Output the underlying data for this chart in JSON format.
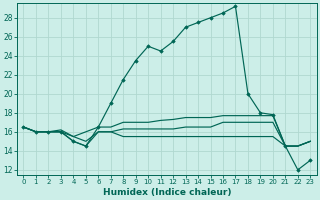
{
  "title": "",
  "xlabel": "Humidex (Indice chaleur)",
  "ylabel": "",
  "bg_color": "#cceee8",
  "grid_color": "#b0d8d0",
  "line_color": "#006655",
  "xlim": [
    -0.5,
    23.5
  ],
  "ylim": [
    11.5,
    29.5
  ],
  "yticks": [
    12,
    14,
    16,
    18,
    20,
    22,
    24,
    26,
    28
  ],
  "xticks": [
    0,
    1,
    2,
    3,
    4,
    5,
    6,
    7,
    8,
    9,
    10,
    11,
    12,
    13,
    14,
    15,
    16,
    17,
    18,
    19,
    20,
    21,
    22,
    23
  ],
  "series1": [
    16.5,
    16.0,
    16.0,
    16.0,
    15.0,
    14.5,
    16.5,
    19.0,
    21.5,
    23.5,
    25.0,
    24.5,
    25.5,
    27.0,
    27.5,
    28.0,
    28.5,
    29.2,
    20.0,
    18.0,
    17.8,
    14.5,
    12.0,
    13.0
  ],
  "series2": [
    16.5,
    16.0,
    16.0,
    16.2,
    15.5,
    16.0,
    16.5,
    16.5,
    17.0,
    17.0,
    17.0,
    17.2,
    17.3,
    17.5,
    17.5,
    17.5,
    17.7,
    17.7,
    17.7,
    17.7,
    17.7,
    14.5,
    14.5,
    15.0
  ],
  "series3": [
    16.5,
    16.0,
    16.0,
    16.0,
    15.5,
    15.0,
    16.0,
    16.0,
    16.3,
    16.3,
    16.3,
    16.3,
    16.3,
    16.5,
    16.5,
    16.5,
    17.0,
    17.0,
    17.0,
    17.0,
    17.0,
    14.5,
    14.5,
    15.0
  ],
  "series4": [
    16.5,
    16.0,
    16.0,
    16.0,
    15.0,
    14.5,
    16.0,
    16.0,
    15.5,
    15.5,
    15.5,
    15.5,
    15.5,
    15.5,
    15.5,
    15.5,
    15.5,
    15.5,
    15.5,
    15.5,
    15.5,
    14.5,
    14.5,
    15.0
  ]
}
